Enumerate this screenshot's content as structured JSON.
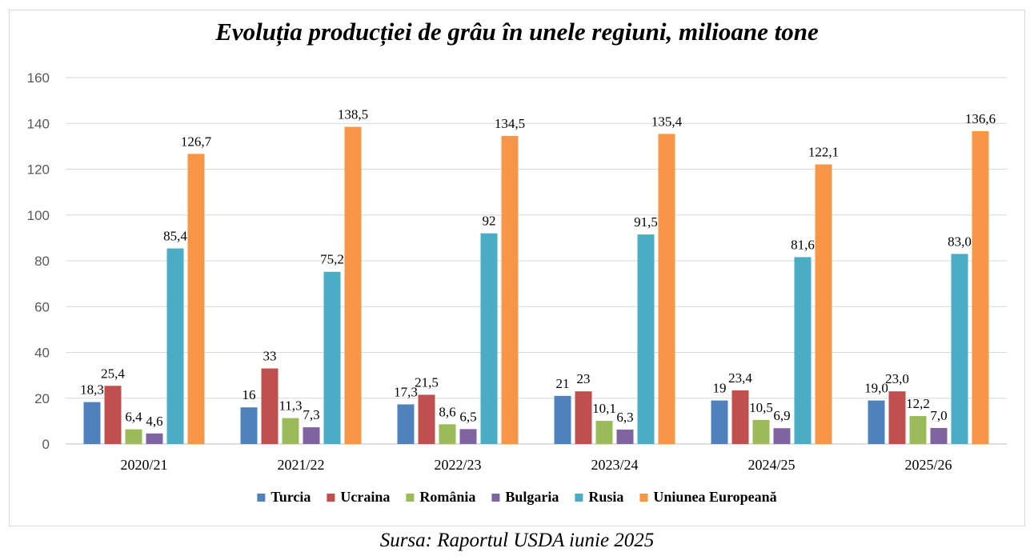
{
  "chart_data": {
    "type": "bar",
    "title": "Evoluția producției de grâu în unele regiuni, milioane tone",
    "xlabel": "",
    "ylabel": "",
    "ylim": [
      0,
      160
    ],
    "y_ticks": [
      "0",
      "20",
      "40",
      "60",
      "80",
      "100",
      "120",
      "140",
      "160"
    ],
    "grid": true,
    "legend_position": "bottom",
    "categories": [
      "2020/21",
      "2021/22",
      "2022/23",
      "2023/24",
      "2024/25",
      "2025/26"
    ],
    "series": [
      {
        "name": "Turcia",
        "color": "#4f81bd",
        "values": [
          18.3,
          16,
          17.3,
          21,
          19,
          19.0
        ],
        "labels": [
          "18,3",
          "16",
          "17,3",
          "21",
          "19",
          "19,0"
        ]
      },
      {
        "name": "Ucraina",
        "color": "#c0504d",
        "values": [
          25.4,
          33,
          21.5,
          23,
          23.4,
          23.0
        ],
        "labels": [
          "25,4",
          "33",
          "21,5",
          "23",
          "23,4",
          "23,0"
        ]
      },
      {
        "name": "România",
        "color": "#9bbb59",
        "values": [
          6.4,
          11.3,
          8.6,
          10.1,
          10.5,
          12.2
        ],
        "labels": [
          "6,4",
          "11,3",
          "8,6",
          "10,1",
          "10,5",
          "12,2"
        ]
      },
      {
        "name": "Bulgaria",
        "color": "#8064a2",
        "values": [
          4.6,
          7.3,
          6.5,
          6.3,
          6.9,
          7.0
        ],
        "labels": [
          "4,6",
          "7,3",
          "6,5",
          "6,3",
          "6,9",
          "7,0"
        ]
      },
      {
        "name": "Rusia",
        "color": "#4bacc6",
        "values": [
          85.4,
          75.2,
          92,
          91.5,
          81.6,
          83.0
        ],
        "labels": [
          "85,4",
          "75,2",
          "92",
          "91,5",
          "81,6",
          "83,0"
        ]
      },
      {
        "name": "Uniunea Europeană",
        "color": "#f79646",
        "values": [
          126.7,
          138.5,
          134.5,
          135.4,
          122.1,
          136.6
        ],
        "labels": [
          "126,7",
          "138,5",
          "134,5",
          "135,4",
          "122,1",
          "136,6"
        ]
      }
    ]
  },
  "source_note": "Sursa: Raportul USDA iunie 2025"
}
